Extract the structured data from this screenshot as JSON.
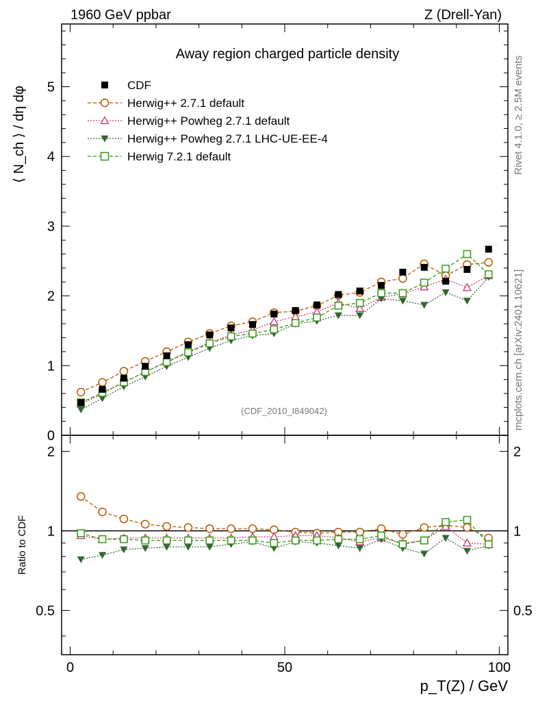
{
  "header": {
    "left": "1960 GeV ppbar",
    "right": "Z (Drell-Yan)"
  },
  "side": {
    "rivet": "Rivet 4.1.0, ≥ 2.5M events",
    "mcplots": "mcplots.cern.ch [arXiv:2401.10621]"
  },
  "chart_data": {
    "type": "scatter",
    "title": "Away region charged particle density",
    "annotation": "(CDF_2010_I849042)",
    "xlabel": "p_T(Z) / GeV",
    "ylabel": "⟨ N_ch ⟩ / dη dφ",
    "ratio_ylabel": "Ratio to CDF",
    "xlim": [
      -2,
      102
    ],
    "ylim": [
      0,
      5.9
    ],
    "ratio_ylim": [
      0.34,
      2.3
    ],
    "x_ticks": [
      0,
      50,
      100
    ],
    "y_ticks": [
      0,
      1,
      2,
      3,
      4,
      5
    ],
    "ratio_ticks": [
      0.5,
      1,
      2
    ],
    "x": [
      2.5,
      7.5,
      12.5,
      17.5,
      22.5,
      27.5,
      32.5,
      37.5,
      42.5,
      47.5,
      52.5,
      57.5,
      62.5,
      67.5,
      72.5,
      77.5,
      82.5,
      87.5,
      92.5,
      97.5
    ],
    "series": [
      {
        "name": "CDF",
        "color": "#000000",
        "marker": "square-filled",
        "values": [
          0.47,
          0.66,
          0.82,
          0.99,
          1.14,
          1.3,
          1.44,
          1.54,
          1.59,
          1.74,
          1.79,
          1.87,
          2.02,
          2.07,
          2.15,
          2.34,
          2.41,
          2.21,
          2.38,
          2.67
        ],
        "ratio": [
          1,
          1,
          1,
          1,
          1,
          1,
          1,
          1,
          1,
          1,
          1,
          1,
          1,
          1,
          1,
          1,
          1,
          1,
          1,
          1
        ]
      },
      {
        "name": "Herwig++ 2.7.1 default",
        "color": "#b35900",
        "marker": "circle-open",
        "line": "dashed",
        "values": [
          0.62,
          0.76,
          0.92,
          1.06,
          1.2,
          1.34,
          1.46,
          1.57,
          1.63,
          1.76,
          1.78,
          1.86,
          2.01,
          2.05,
          2.2,
          2.25,
          2.46,
          2.29,
          2.45,
          2.48
        ],
        "ratio": [
          1.35,
          1.18,
          1.11,
          1.06,
          1.04,
          1.03,
          1.02,
          1.02,
          1.02,
          1.01,
          0.99,
          0.98,
          0.99,
          0.99,
          1.02,
          0.97,
          1.03,
          1.05,
          1.03,
          0.94
        ]
      },
      {
        "name": "Herwig++ Powheg 2.7.1 default",
        "color": "#cc3377",
        "marker": "triangle-open",
        "line": "dotted",
        "values": [
          0.45,
          0.6,
          0.76,
          0.91,
          1.06,
          1.2,
          1.33,
          1.44,
          1.51,
          1.63,
          1.7,
          1.77,
          1.9,
          1.82,
          1.98,
          2.03,
          2.13,
          2.24,
          2.12,
          2.29
        ],
        "ratio": [
          0.96,
          0.93,
          0.94,
          0.94,
          0.94,
          0.94,
          0.94,
          0.94,
          0.95,
          0.95,
          0.96,
          0.96,
          0.94,
          0.91,
          0.94,
          0.9,
          0.92,
          1.04,
          0.9,
          0.89
        ]
      },
      {
        "name": "Herwig++ Powheg 2.7.1 LHC-UE-EE-4",
        "color": "#336633",
        "marker": "triangle-down-filled",
        "line": "dotted",
        "values": [
          0.37,
          0.53,
          0.7,
          0.84,
          0.99,
          1.12,
          1.25,
          1.36,
          1.43,
          1.46,
          1.6,
          1.64,
          1.72,
          1.72,
          1.96,
          1.93,
          1.87,
          2.05,
          1.93,
          2.27
        ],
        "ratio": [
          0.78,
          0.81,
          0.85,
          0.86,
          0.87,
          0.87,
          0.87,
          0.89,
          0.91,
          0.86,
          0.91,
          0.9,
          0.88,
          0.86,
          0.93,
          0.86,
          0.82,
          0.94,
          0.84,
          0.88
        ]
      },
      {
        "name": "Herwig 7.2.1 default",
        "color": "#339911",
        "marker": "square-open",
        "line": "dashed",
        "values": [
          0.47,
          0.61,
          0.76,
          0.91,
          1.05,
          1.19,
          1.32,
          1.42,
          1.46,
          1.52,
          1.61,
          1.69,
          1.86,
          1.9,
          2.04,
          2.04,
          2.19,
          2.39,
          2.6,
          2.31
        ],
        "ratio": [
          0.98,
          0.93,
          0.93,
          0.92,
          0.92,
          0.92,
          0.92,
          0.92,
          0.92,
          0.9,
          0.92,
          0.92,
          0.93,
          0.93,
          0.96,
          0.89,
          0.92,
          1.08,
          1.1,
          0.89
        ]
      }
    ]
  }
}
